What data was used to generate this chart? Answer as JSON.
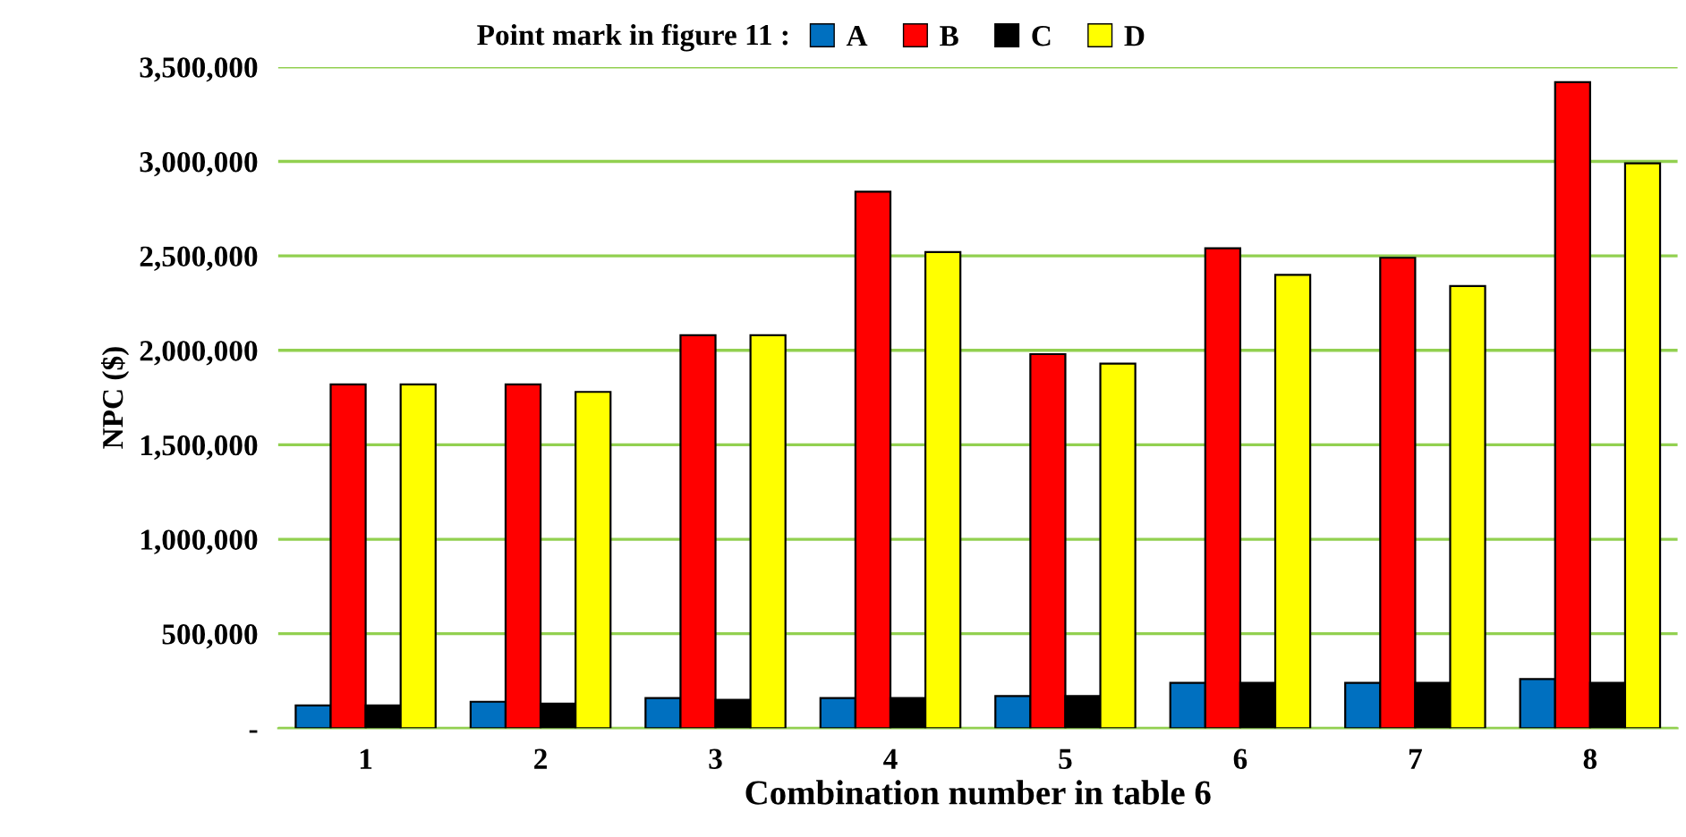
{
  "chart_data": {
    "type": "bar",
    "xlabel": "Combination number in table 6",
    "ylabel": "NPC ($)",
    "legend_title": "Point mark in figure 11 :",
    "categories": [
      "1",
      "2",
      "3",
      "4",
      "5",
      "6",
      "7",
      "8"
    ],
    "series": [
      {
        "name": "A",
        "color": "#0070c0",
        "values": [
          120000,
          140000,
          160000,
          160000,
          170000,
          240000,
          240000,
          260000
        ]
      },
      {
        "name": "B",
        "color": "#ff0000",
        "values": [
          1820000,
          1820000,
          2080000,
          2840000,
          1980000,
          2540000,
          2490000,
          3420000
        ]
      },
      {
        "name": "C",
        "color": "#000000",
        "values": [
          120000,
          130000,
          150000,
          160000,
          170000,
          240000,
          240000,
          240000
        ]
      },
      {
        "name": "D",
        "color": "#ffff00",
        "values": [
          1820000,
          1780000,
          2080000,
          2520000,
          1930000,
          2400000,
          2340000,
          2990000
        ]
      }
    ],
    "ylim": [
      0,
      3500000
    ],
    "yticks": [
      {
        "value": 0,
        "label": "-"
      },
      {
        "value": 500000,
        "label": "500,000"
      },
      {
        "value": 1000000,
        "label": "1,000,000"
      },
      {
        "value": 1500000,
        "label": "1,500,000"
      },
      {
        "value": 2000000,
        "label": "2,000,000"
      },
      {
        "value": 2500000,
        "label": "2,500,000"
      },
      {
        "value": 3000000,
        "label": "3,000,000"
      },
      {
        "value": 3500000,
        "label": "3,500,000"
      }
    ],
    "grid": "y",
    "legend": "top"
  }
}
